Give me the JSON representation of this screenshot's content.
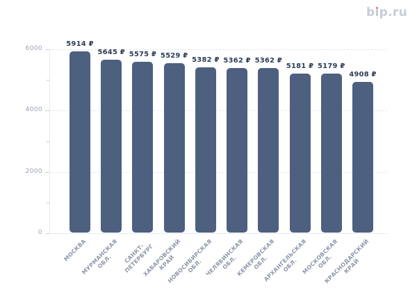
{
  "logo": {
    "text": "bip.ru",
    "part_b": "b",
    "part_i": "ı",
    "part_rest": "p.ru",
    "color": "#c6ccd9",
    "dot_color": "#ef6a4e"
  },
  "chart_data": {
    "type": "bar",
    "title": "",
    "xlabel": "",
    "ylabel": "",
    "legend": false,
    "grid": true,
    "ylim": [
      0,
      6000
    ],
    "yticks": [
      0,
      2000,
      4000,
      6000
    ],
    "minor_yticks": [
      1000,
      3000,
      5000
    ],
    "categories": [
      "МОСКВА",
      "МУРМАНСКАЯ ОБЛ.",
      "САНКТ-ПЕТЕРБУРГ",
      "ХАБАРОВСКИЙ КРАЙ",
      "НОВОСИБИРСКАЯ ОБЛ.",
      "ЧЕЛЯБИНСКАЯ ОБЛ.",
      "КЕМЕРОВСКАЯ ОБЛ.",
      "АРХАНГЕЛЬСКАЯ ОБЛ.",
      "МОСКОВСКАЯ ОБЛ.",
      "КРАСНОДАРСКИЙ КРАЙ"
    ],
    "category_lines": [
      [
        "МОСКВА"
      ],
      [
        "МУРМАНСКАЯ",
        "ОБЛ."
      ],
      [
        "САНКТ-",
        "ПЕТЕРБУРГ"
      ],
      [
        "ХАБАРОВСКИЙ",
        "КРАЙ"
      ],
      [
        "НОВОСИБИРСКАЯ",
        "ОБЛ."
      ],
      [
        "ЧЕЛЯБИНСКАЯ",
        "ОБЛ."
      ],
      [
        "КЕМЕРОВСКАЯ",
        "ОБЛ."
      ],
      [
        "АРХАНГЕЛЬСКАЯ",
        "ОБЛ."
      ],
      [
        "МОСКОВСКАЯ",
        "ОБЛ."
      ],
      [
        "КРАСНОДАРСКИЙ",
        "КРАЙ"
      ]
    ],
    "values": [
      5914,
      5645,
      5575,
      5529,
      5382,
      5362,
      5362,
      5181,
      5179,
      4908
    ],
    "bar_labels": [
      "5914 ₽",
      "5645 ₽",
      "5575 ₽",
      "5529 ₽",
      "5382 ₽",
      "5362 ₽",
      "5362 ₽",
      "5181 ₽",
      "5179 ₽",
      "4908 ₽"
    ],
    "colors": {
      "bar": "#4d6080",
      "value_label": "#2e3d57",
      "axis_label": "#9aa3b5",
      "category_label": "#8e97a9",
      "gridline": "#e2e5eb",
      "axis_line": "#e6e9ee",
      "tick": "#c9cfda"
    }
  }
}
